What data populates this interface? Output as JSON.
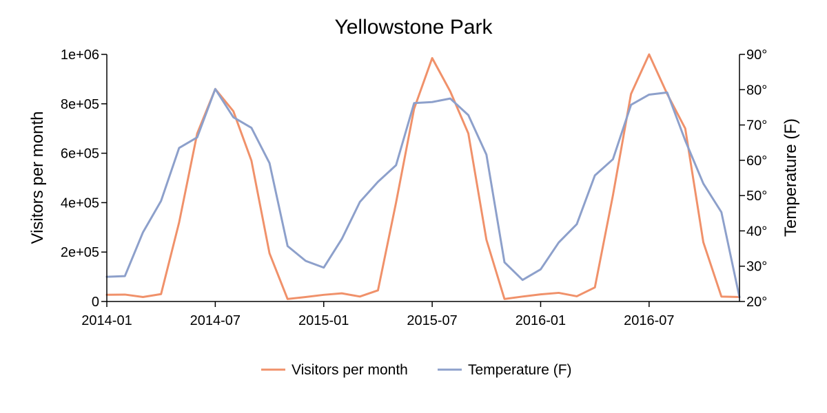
{
  "chart_data": {
    "type": "line",
    "title": "Yellowstone Park",
    "xlabel": "",
    "ylabel": "Visitors per month",
    "y2label": "Temperature (F)",
    "x_tick_labels": [
      "2014-01",
      "2014-07",
      "2015-01",
      "2015-07",
      "2016-01",
      "2016-07"
    ],
    "y_tick_labels": [
      "0",
      "2e+05",
      "4e+05",
      "6e+05",
      "8e+05",
      "1e+06"
    ],
    "y2_tick_labels": [
      "20°",
      "30°",
      "40°",
      "50°",
      "60°",
      "70°",
      "80°",
      "90°"
    ],
    "ylim": [
      0,
      1000000
    ],
    "y2lim": [
      20,
      90
    ],
    "x": [
      "2014-01",
      "2014-02",
      "2014-03",
      "2014-04",
      "2014-05",
      "2014-06",
      "2014-07",
      "2014-08",
      "2014-09",
      "2014-10",
      "2014-11",
      "2014-12",
      "2015-01",
      "2015-02",
      "2015-03",
      "2015-04",
      "2015-05",
      "2015-06",
      "2015-07",
      "2015-08",
      "2015-09",
      "2015-10",
      "2015-11",
      "2015-12",
      "2016-01",
      "2016-02",
      "2016-03",
      "2016-04",
      "2016-05",
      "2016-06",
      "2016-07",
      "2016-08",
      "2016-09",
      "2016-10",
      "2016-11",
      "2016-12"
    ],
    "series": [
      {
        "name": "Visitors per month",
        "axis": "left",
        "color": "#f0916a",
        "values": [
          27000,
          28000,
          18000,
          30000,
          320000,
          680000,
          860000,
          770000,
          570000,
          195000,
          10000,
          18000,
          27000,
          33000,
          20000,
          45000,
          400000,
          780000,
          985000,
          850000,
          680000,
          250000,
          10000,
          20000,
          29000,
          35000,
          21000,
          57000,
          430000,
          840000,
          1000000,
          840000,
          700000,
          240000,
          20000,
          18000
        ]
      },
      {
        "name": "Temperature (F)",
        "axis": "right",
        "color": "#8da0cb",
        "values": [
          27,
          27.2,
          39.6,
          48.5,
          63.5,
          66.5,
          80.2,
          72.2,
          69.2,
          59.2,
          35.7,
          31.5,
          29.6,
          37.7,
          48.2,
          53.9,
          58.6,
          76.2,
          76.5,
          77.5,
          72.8,
          61.6,
          31.1,
          26.1,
          29.1,
          36.7,
          41.9,
          55.7,
          60.3,
          75.7,
          78.6,
          79.2,
          65.6,
          53.4,
          45.3,
          21.2
        ]
      }
    ],
    "legend": {
      "position": "bottom",
      "entries": [
        "Visitors per month",
        "Temperature (F)"
      ]
    }
  }
}
